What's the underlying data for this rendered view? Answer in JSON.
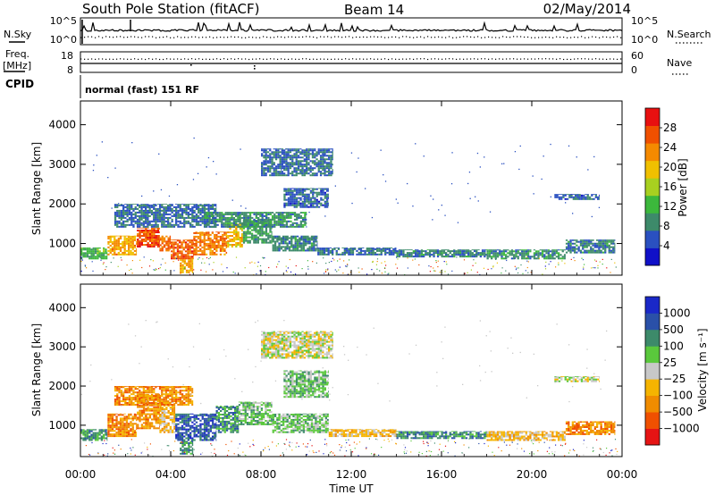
{
  "header": {
    "station": "South Pole Station (fitACF)",
    "beam": "Beam 14",
    "date": "02/May/2014"
  },
  "sky_panel": {
    "left_label": "N.Sky",
    "right_label": "N.Search",
    "left_ticks": [
      "10^5",
      "10^0"
    ],
    "right_ticks": [
      "10^5",
      "10^0"
    ]
  },
  "freq_panel": {
    "left_label_1": "Freq.",
    "left_label_2": "[MHz]",
    "right_label": "Nave",
    "left_ticks": [
      "18",
      "8"
    ],
    "right_ticks": [
      "60",
      "0"
    ]
  },
  "cpid": {
    "label": "CPID",
    "text": "normal (fast) 151 RF"
  },
  "axes": {
    "ylabel": "Slant Range [km]",
    "xlabel": "Time UT"
  },
  "colors": {
    "power": [
      "#1010c8",
      "#2a50c0",
      "#3d8a6a",
      "#3cb83c",
      "#a8d020",
      "#f0c000",
      "#f58a00",
      "#f05000",
      "#e81010"
    ],
    "velocity": [
      "#e61414",
      "#f05000",
      "#f08c00",
      "#f5b400",
      "#c8c8c8",
      "#5ac83c",
      "#3d8a6a",
      "#2a50a8",
      "#1a28c8"
    ]
  },
  "chart_data": [
    {
      "type": "heatmap",
      "name": "power",
      "x_unit": "hours UT",
      "xlim": [
        0,
        24
      ],
      "ylim": [
        200,
        4600
      ],
      "x_ticks": [
        0,
        4,
        8,
        12,
        16,
        20,
        24
      ],
      "x_tick_labels": [
        "00:00",
        "04:00",
        "08:00",
        "12:00",
        "16:00",
        "20:00",
        "00:00"
      ],
      "y_ticks": [
        1000,
        2000,
        3000,
        4000
      ],
      "y_tick_labels": [
        "1000",
        "2000",
        "3000",
        "4000"
      ],
      "colorbar": {
        "label": "Power [dB]",
        "range": [
          0,
          32
        ],
        "ticks": [
          4,
          8,
          12,
          16,
          20,
          24,
          28
        ],
        "tick_labels": [
          "4",
          "8",
          "12",
          "16",
          "20",
          "24",
          "28"
        ]
      },
      "bands": [
        {
          "t0": 0.0,
          "t1": 1.2,
          "r0": 600,
          "r1": 900,
          "v": 12
        },
        {
          "t0": 1.2,
          "t1": 2.5,
          "r0": 700,
          "r1": 1200,
          "v": 22
        },
        {
          "t0": 2.5,
          "t1": 3.5,
          "r0": 900,
          "r1": 1400,
          "v": 27
        },
        {
          "t0": 3.5,
          "t1": 4.0,
          "r0": 800,
          "r1": 1200,
          "v": 25
        },
        {
          "t0": 4.0,
          "t1": 5.0,
          "r0": 600,
          "r1": 1100,
          "v": 26
        },
        {
          "t0": 5.0,
          "t1": 6.5,
          "r0": 700,
          "r1": 1300,
          "v": 24
        },
        {
          "t0": 6.5,
          "t1": 7.2,
          "r0": 900,
          "r1": 1500,
          "v": 20
        },
        {
          "t0": 7.2,
          "t1": 8.5,
          "r0": 1000,
          "r1": 1600,
          "v": 10
        },
        {
          "t0": 8.5,
          "t1": 10.5,
          "r0": 800,
          "r1": 1200,
          "v": 8
        },
        {
          "t0": 10.5,
          "t1": 14.0,
          "r0": 700,
          "r1": 900,
          "v": 7
        },
        {
          "t0": 14.0,
          "t1": 18.0,
          "r0": 650,
          "r1": 850,
          "v": 8
        },
        {
          "t0": 18.0,
          "t1": 21.5,
          "r0": 600,
          "r1": 850,
          "v": 9
        },
        {
          "t0": 21.5,
          "t1": 23.7,
          "r0": 750,
          "r1": 1100,
          "v": 8
        },
        {
          "t0": 1.5,
          "t1": 6.0,
          "r0": 1400,
          "r1": 2000,
          "v": 7
        },
        {
          "t0": 5.5,
          "t1": 10.0,
          "r0": 1400,
          "r1": 1800,
          "v": 9
        },
        {
          "t0": 9.0,
          "t1": 11.0,
          "r0": 1900,
          "r1": 2400,
          "v": 6
        },
        {
          "t0": 8.0,
          "t1": 11.2,
          "r0": 2700,
          "r1": 3400,
          "v": 7
        },
        {
          "t0": 21.0,
          "t1": 23.0,
          "r0": 2100,
          "r1": 2250,
          "v": 6
        },
        {
          "t0": 4.4,
          "t1": 5.0,
          "r0": 250,
          "r1": 600,
          "v": 22
        }
      ]
    },
    {
      "type": "heatmap",
      "name": "velocity",
      "x_unit": "hours UT",
      "xlim": [
        0,
        24
      ],
      "ylim": [
        200,
        4600
      ],
      "x_ticks": [
        0,
        4,
        8,
        12,
        16,
        20,
        24
      ],
      "x_tick_labels": [
        "00:00",
        "04:00",
        "08:00",
        "12:00",
        "16:00",
        "20:00",
        "00:00"
      ],
      "y_ticks": [
        1000,
        2000,
        3000,
        4000
      ],
      "y_tick_labels": [
        "1000",
        "2000",
        "3000",
        "4000"
      ],
      "colorbar": {
        "label": "Velocity [m s⁻¹]",
        "tick_labels": [
          "1000",
          "500",
          "100",
          "25",
          "−25",
          "−100",
          "−500",
          "−1000"
        ]
      },
      "bands": [
        {
          "t0": 0.0,
          "t1": 1.2,
          "r0": 600,
          "r1": 900,
          "v": 6
        },
        {
          "t0": 1.2,
          "t1": 2.5,
          "r0": 700,
          "r1": 1300,
          "v": 2
        },
        {
          "t0": 2.5,
          "t1": 3.5,
          "r0": 900,
          "r1": 1800,
          "v": 2
        },
        {
          "t0": 3.5,
          "t1": 4.2,
          "r0": 800,
          "r1": 1600,
          "v": 3
        },
        {
          "t0": 4.2,
          "t1": 6.0,
          "r0": 600,
          "r1": 1300,
          "v": 7
        },
        {
          "t0": 6.0,
          "t1": 7.0,
          "r0": 800,
          "r1": 1500,
          "v": 6
        },
        {
          "t0": 7.0,
          "t1": 8.5,
          "r0": 1000,
          "r1": 1600,
          "v": 5
        },
        {
          "t0": 8.5,
          "t1": 11.0,
          "r0": 800,
          "r1": 1300,
          "v": 5
        },
        {
          "t0": 11.0,
          "t1": 14.0,
          "r0": 700,
          "r1": 900,
          "v": 3
        },
        {
          "t0": 14.0,
          "t1": 18.0,
          "r0": 650,
          "r1": 850,
          "v": 6
        },
        {
          "t0": 18.0,
          "t1": 21.5,
          "r0": 600,
          "r1": 850,
          "v": 3
        },
        {
          "t0": 21.5,
          "t1": 23.7,
          "r0": 750,
          "r1": 1100,
          "v": 2
        },
        {
          "t0": 1.5,
          "t1": 5.0,
          "r0": 1500,
          "r1": 2000,
          "v": 2
        },
        {
          "t0": 9.0,
          "t1": 11.0,
          "r0": 1700,
          "r1": 2400,
          "v": 5
        },
        {
          "t0": 8.0,
          "t1": 11.2,
          "r0": 2700,
          "r1": 3400,
          "v": 4
        },
        {
          "t0": 21.0,
          "t1": 23.0,
          "r0": 2100,
          "r1": 2250,
          "v": 4
        },
        {
          "t0": 4.4,
          "t1": 5.0,
          "r0": 250,
          "r1": 600,
          "v": 6
        }
      ]
    }
  ]
}
